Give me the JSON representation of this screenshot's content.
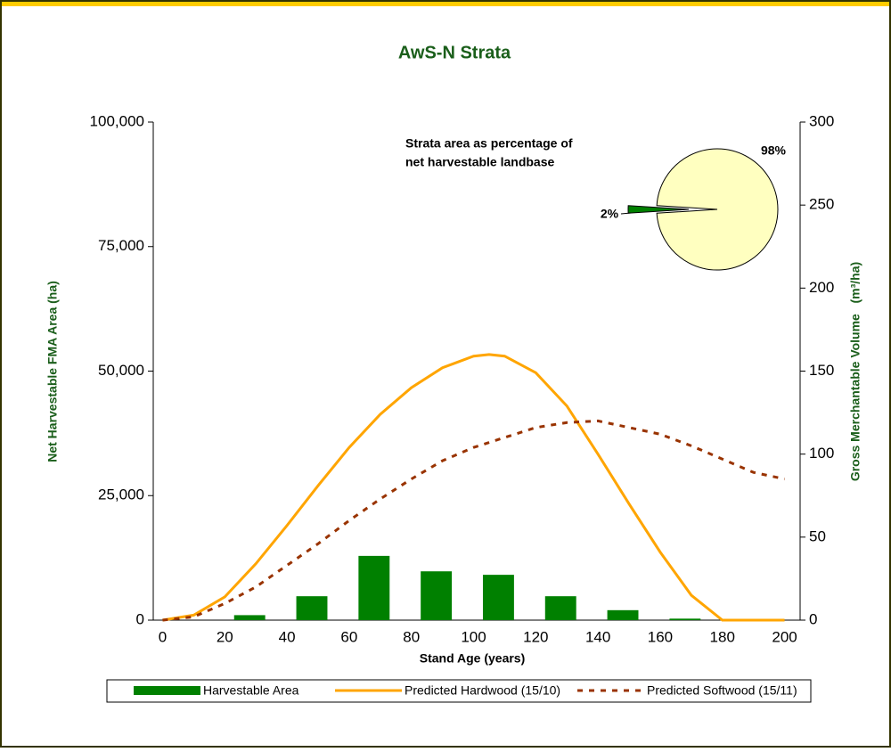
{
  "chart_data": [
    {
      "type": "combo",
      "title": "AwS-N Strata",
      "xlabel": "Stand Age (years)",
      "ylabel": "Net Harvestable FMA Area (ha)",
      "y2label": "Gross Merchantable Volume   (m³/ha)",
      "xlim": [
        -3,
        205
      ],
      "xticks": [
        0,
        20,
        40,
        60,
        80,
        100,
        120,
        140,
        160,
        180,
        200
      ],
      "ylim": [
        0,
        100000
      ],
      "yticks": [
        0,
        {
          "value": 25000,
          "label": "25,000"
        },
        {
          "value": 50000,
          "label": "50,000"
        },
        {
          "value": 75000,
          "label": "75,000"
        },
        {
          "value": 100000,
          "label": "100,000"
        }
      ],
      "y2lim": [
        0,
        300
      ],
      "y2ticks": [
        0,
        50,
        100,
        150,
        200,
        250,
        300
      ],
      "legend": "bottom",
      "series": [
        {
          "name": "Harvestable Area",
          "type": "bar",
          "color": "#008000",
          "x": [
            28,
            48,
            68,
            88,
            108,
            128,
            148,
            168
          ],
          "values": [
            1000,
            4800,
            12900,
            9800,
            9100,
            4800,
            2000,
            300
          ]
        },
        {
          "name": "Predicted Hardwood (15/10)",
          "type": "line",
          "axis": "y2",
          "color": "#ffa500",
          "line_style": "solid",
          "x": [
            0,
            10,
            20,
            30,
            40,
            50,
            60,
            70,
            80,
            90,
            100,
            105,
            110,
            120,
            130,
            140,
            150,
            160,
            170,
            180,
            190,
            200
          ],
          "values": [
            0,
            3,
            14,
            34,
            57,
            81,
            104,
            124,
            140,
            152,
            159,
            160,
            159,
            149,
            129,
            100,
            70,
            41,
            15,
            0,
            0,
            0
          ]
        },
        {
          "name": "Predicted Softwood (15/11)",
          "type": "line",
          "axis": "y2",
          "color": "#993300",
          "line_style": "dashed",
          "x": [
            0,
            10,
            20,
            30,
            40,
            50,
            60,
            70,
            80,
            90,
            100,
            110,
            120,
            130,
            140,
            150,
            160,
            170,
            180,
            190,
            200
          ],
          "values": [
            0,
            2,
            10,
            20,
            33,
            46,
            60,
            73,
            85,
            96,
            104,
            110,
            116,
            119,
            120,
            116,
            112,
            105,
            97,
            89,
            85
          ]
        }
      ]
    },
    {
      "type": "pie",
      "title": [
        "Strata area as percentage of",
        "net harvestable landbase"
      ],
      "values": [
        98,
        2
      ],
      "value_labels": [
        "98%",
        "2%"
      ],
      "colors": [
        "#ffffc0",
        "#008000"
      ]
    }
  ]
}
